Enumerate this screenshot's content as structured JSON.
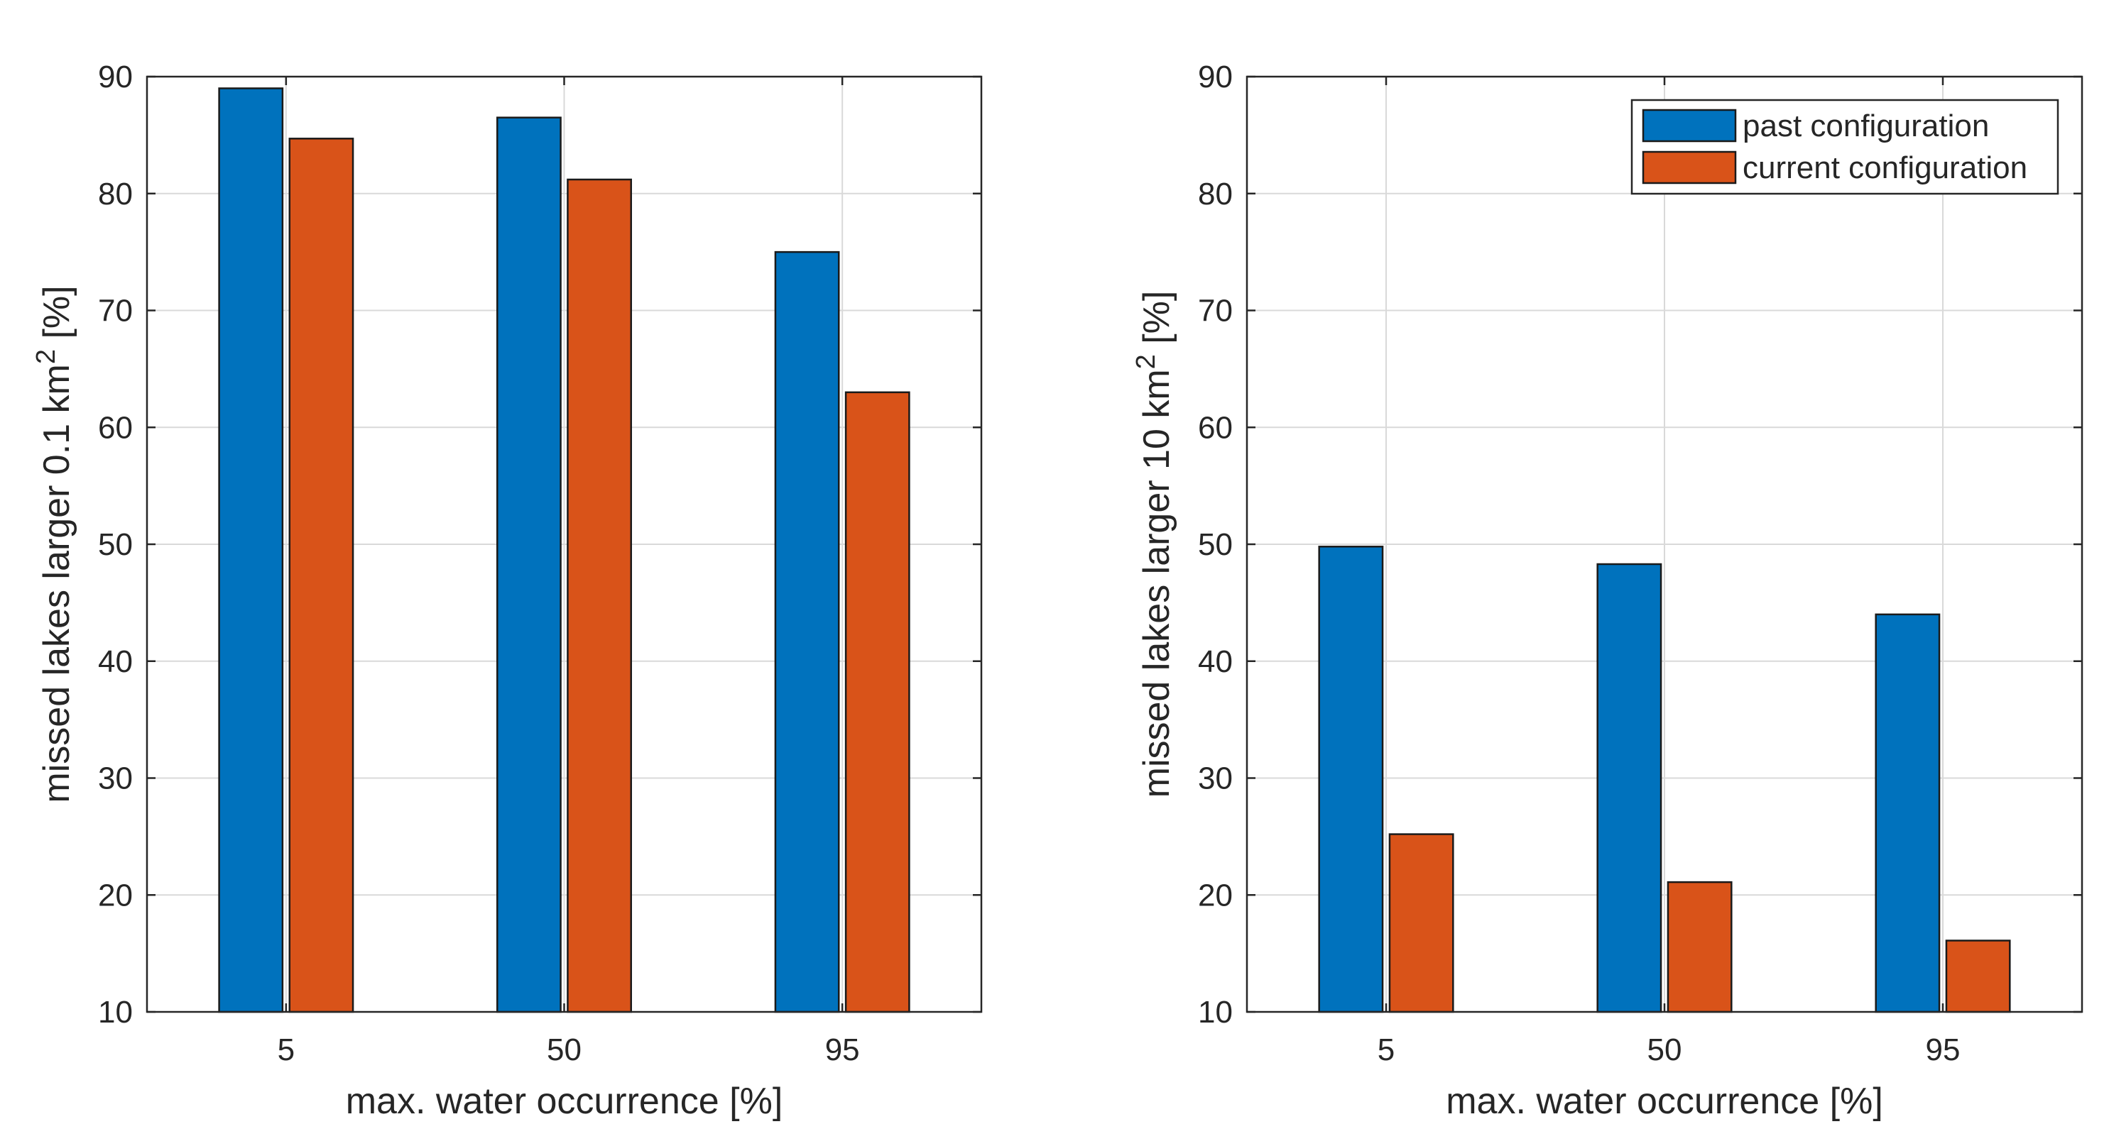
{
  "chart_data": [
    {
      "type": "bar",
      "categories": [
        "5",
        "50",
        "95"
      ],
      "series": [
        {
          "name": "past configuration",
          "values": [
            89,
            86.5,
            75
          ]
        },
        {
          "name": "current configuration",
          "values": [
            84.7,
            81.2,
            63
          ]
        }
      ],
      "xlabel": "max. water occurrence [%]",
      "ylabel": {
        "prefix": "missed lakes larger 0.1 km",
        "sup": "2",
        "suffix": " [%]"
      },
      "ylim": [
        10,
        90
      ],
      "yticks": [
        "10",
        "20",
        "30",
        "40",
        "50",
        "60",
        "70",
        "80",
        "90"
      ],
      "grid": true,
      "legend": null
    },
    {
      "type": "bar",
      "categories": [
        "5",
        "50",
        "95"
      ],
      "series": [
        {
          "name": "past configuration",
          "values": [
            49.8,
            48.3,
            44
          ]
        },
        {
          "name": "current configuration",
          "values": [
            25.2,
            21.1,
            16.1
          ]
        }
      ],
      "xlabel": "max. water occurrence [%]",
      "ylabel": {
        "prefix": "missed lakes larger 10 km",
        "sup": "2",
        "suffix": " [%]"
      },
      "ylim": [
        10,
        90
      ],
      "yticks": [
        "10",
        "20",
        "30",
        "40",
        "50",
        "60",
        "70",
        "80",
        "90"
      ],
      "grid": true,
      "legend": "top-right"
    }
  ],
  "colors": {
    "past": "#0072BD",
    "current": "#D95319"
  }
}
